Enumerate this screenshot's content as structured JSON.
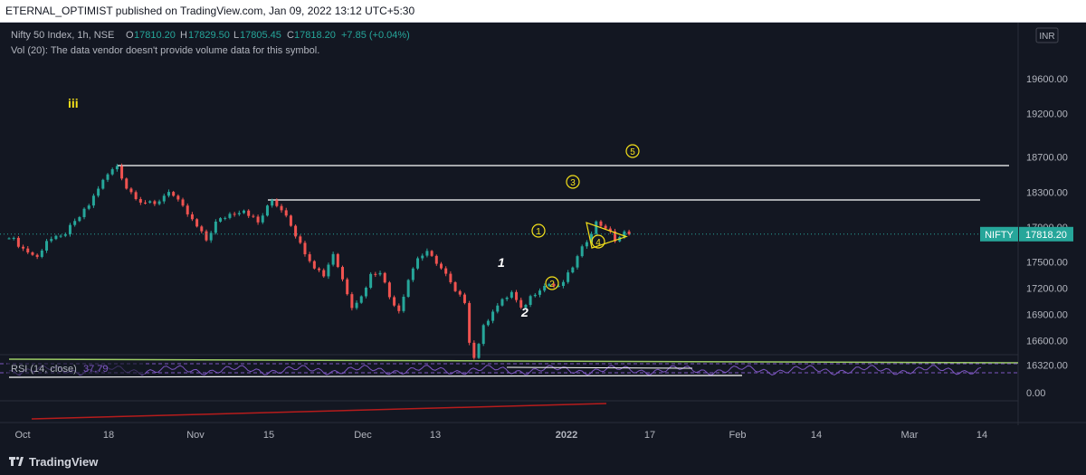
{
  "header": {
    "title": "ETERNAL_OPTIMIST published on TradingView.com, Jan 09, 2022 13:12 UTC+5:30"
  },
  "legend": {
    "symbol": "Nifty 50 Index, 1h, NSE",
    "o_label": "O",
    "o_value": "17810.20",
    "h_label": "H",
    "h_value": "17829.50",
    "l_label": "L",
    "l_value": "17805.45",
    "c_label": "C",
    "c_value": "17818.20",
    "change": "+7.85 (+0.04%)",
    "volume_note": "Vol (20): The data vendor doesn't provide volume data for this symbol."
  },
  "currency": "INR",
  "price_tag": {
    "symbol": "NIFTY",
    "value": "17818.20"
  },
  "rsi": {
    "label": "RSI (14, close)",
    "value": "37.79",
    "axis_label": "0.00"
  },
  "footer": {
    "brand": "TradingView"
  },
  "colors": {
    "up": "#26a69a",
    "down": "#ef5350",
    "accent": "#2962ff",
    "tag": "#26a69a",
    "rsi": "#7e57c2",
    "annotation": "#f5e11a"
  },
  "annotations": {
    "degree": "iii",
    "minor": [
      "1",
      "2"
    ],
    "circled": [
      "1",
      "2",
      "3",
      "4",
      "5"
    ]
  },
  "chart_data": {
    "type": "candlestick",
    "y_axis_ticks": [
      "19600.00",
      "19200.00",
      "18700.00",
      "18300.00",
      "17900.00",
      "17500.00",
      "17200.00",
      "16900.00",
      "16600.00",
      "16320.00"
    ],
    "ylim": [
      16200,
      19850
    ],
    "x_axis_ticks": [
      "Oct",
      "18",
      "Nov",
      "15",
      "Dec",
      "13",
      "2022",
      "17",
      "Feb",
      "14",
      "Mar",
      "14"
    ],
    "horizontal_levels": [
      18604,
      18210
    ],
    "last_close": 17818.2,
    "price_path": [
      [
        0,
        17800
      ],
      [
        3,
        17650
      ],
      [
        6,
        17550
      ],
      [
        8,
        17750
      ],
      [
        11,
        17780
      ],
      [
        14,
        17950
      ],
      [
        17,
        18150
      ],
      [
        19,
        18350
      ],
      [
        21,
        18500
      ],
      [
        23,
        18604
      ],
      [
        25,
        18350
      ],
      [
        28,
        18200
      ],
      [
        31,
        18150
      ],
      [
        34,
        18320
      ],
      [
        37,
        18120
      ],
      [
        40,
        17900
      ],
      [
        42,
        17750
      ],
      [
        44,
        17950
      ],
      [
        47,
        18050
      ],
      [
        50,
        18100
      ],
      [
        53,
        17950
      ],
      [
        56,
        18210
      ],
      [
        59,
        18050
      ],
      [
        62,
        17700
      ],
      [
        65,
        17450
      ],
      [
        67,
        17350
      ],
      [
        69,
        17600
      ],
      [
        71,
        17300
      ],
      [
        73,
        17000
      ],
      [
        75,
        17100
      ],
      [
        77,
        17350
      ],
      [
        79,
        17400
      ],
      [
        81,
        17100
      ],
      [
        83,
        16950
      ],
      [
        85,
        17300
      ],
      [
        87,
        17550
      ],
      [
        89,
        17600
      ],
      [
        91,
        17500
      ],
      [
        93,
        17350
      ],
      [
        95,
        17150
      ],
      [
        97,
        17050
      ],
      [
        98,
        16600
      ],
      [
        99,
        16400
      ],
      [
        101,
        16750
      ],
      [
        103,
        16950
      ],
      [
        105,
        17050
      ],
      [
        107,
        17150
      ],
      [
        109,
        16950
      ],
      [
        111,
        17100
      ],
      [
        113,
        17200
      ],
      [
        115,
        17250
      ],
      [
        117,
        17200
      ],
      [
        119,
        17350
      ],
      [
        121,
        17550
      ],
      [
        123,
        17750
      ],
      [
        125,
        17950
      ],
      [
        127,
        17900
      ],
      [
        129,
        17750
      ],
      [
        131,
        17830
      ],
      [
        132,
        17818
      ]
    ]
  }
}
